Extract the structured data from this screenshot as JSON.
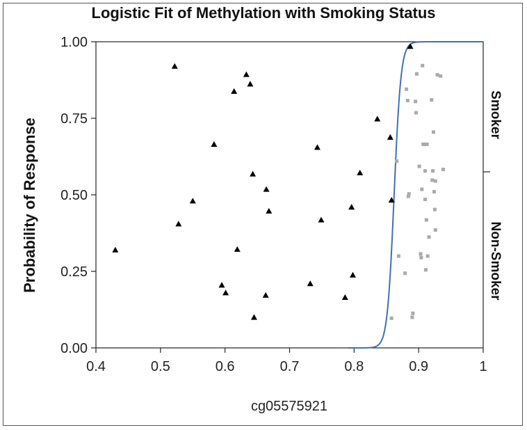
{
  "chart_data": {
    "type": "scatter",
    "title": "Logistic Fit of Methylation with Smoking Status",
    "xlabel": "cg05575921",
    "ylabel": "Probability of Response",
    "xlim": [
      0.4,
      1.0
    ],
    "ylim": [
      0.0,
      1.0
    ],
    "x_ticks": [
      "0.4",
      "0.5",
      "0.6",
      "0.7",
      "0.8",
      "0.9",
      "1"
    ],
    "y_ticks": [
      "0.00",
      "0.25",
      "0.50",
      "0.75",
      "1.00"
    ],
    "right_axis_labels": [
      "Smoker",
      "Non-Smoker"
    ],
    "right_axis_divider": 0.575,
    "grid": false,
    "curve": {
      "color": "#3f6fb6",
      "midpoint": 0.862,
      "slope": 190
    },
    "series": [
      {
        "marker": "triangle",
        "color": "#000000",
        "points": [
          [
            0.43,
            0.32
          ],
          [
            0.522,
            0.92
          ],
          [
            0.528,
            0.405
          ],
          [
            0.55,
            0.48
          ],
          [
            0.583,
            0.665
          ],
          [
            0.595,
            0.205
          ],
          [
            0.601,
            0.18
          ],
          [
            0.614,
            0.838
          ],
          [
            0.619,
            0.322
          ],
          [
            0.633,
            0.893
          ],
          [
            0.639,
            0.862
          ],
          [
            0.643,
            0.568
          ],
          [
            0.645,
            0.1
          ],
          [
            0.663,
            0.172
          ],
          [
            0.664,
            0.518
          ],
          [
            0.668,
            0.447
          ],
          [
            0.732,
            0.21
          ],
          [
            0.743,
            0.655
          ],
          [
            0.749,
            0.418
          ],
          [
            0.786,
            0.165
          ],
          [
            0.796,
            0.46
          ],
          [
            0.798,
            0.238
          ],
          [
            0.809,
            0.572
          ],
          [
            0.836,
            0.748
          ],
          [
            0.856,
            0.688
          ],
          [
            0.858,
            0.483
          ],
          [
            0.887,
            0.985
          ]
        ]
      },
      {
        "marker": "square",
        "color": "#aaaaaa",
        "points": [
          [
            0.858,
            0.097
          ],
          [
            0.866,
            0.61
          ],
          [
            0.869,
            0.3
          ],
          [
            0.879,
            0.244
          ],
          [
            0.881,
            0.845
          ],
          [
            0.883,
            0.808
          ],
          [
            0.884,
            0.495
          ],
          [
            0.885,
            0.503
          ],
          [
            0.89,
            0.1
          ],
          [
            0.891,
            0.113
          ],
          [
            0.895,
            0.805
          ],
          [
            0.896,
            0.768
          ],
          [
            0.897,
            0.895
          ],
          [
            0.901,
            0.593
          ],
          [
            0.903,
            0.307
          ],
          [
            0.904,
            0.295
          ],
          [
            0.905,
            0.518
          ],
          [
            0.906,
            0.922
          ],
          [
            0.907,
            0.665
          ],
          [
            0.909,
            0.665
          ],
          [
            0.91,
            0.578
          ],
          [
            0.91,
            0.485
          ],
          [
            0.911,
            0.255
          ],
          [
            0.912,
            0.418
          ],
          [
            0.913,
            0.665
          ],
          [
            0.914,
            0.3
          ],
          [
            0.916,
            0.362
          ],
          [
            0.92,
            0.81
          ],
          [
            0.921,
            0.548
          ],
          [
            0.922,
            0.578
          ],
          [
            0.923,
            0.705
          ],
          [
            0.924,
            0.51
          ],
          [
            0.925,
            0.452
          ],
          [
            0.926,
            0.385
          ],
          [
            0.926,
            0.545
          ],
          [
            0.929,
            0.892
          ],
          [
            0.934,
            0.888
          ],
          [
            0.938,
            0.583
          ]
        ]
      }
    ]
  }
}
